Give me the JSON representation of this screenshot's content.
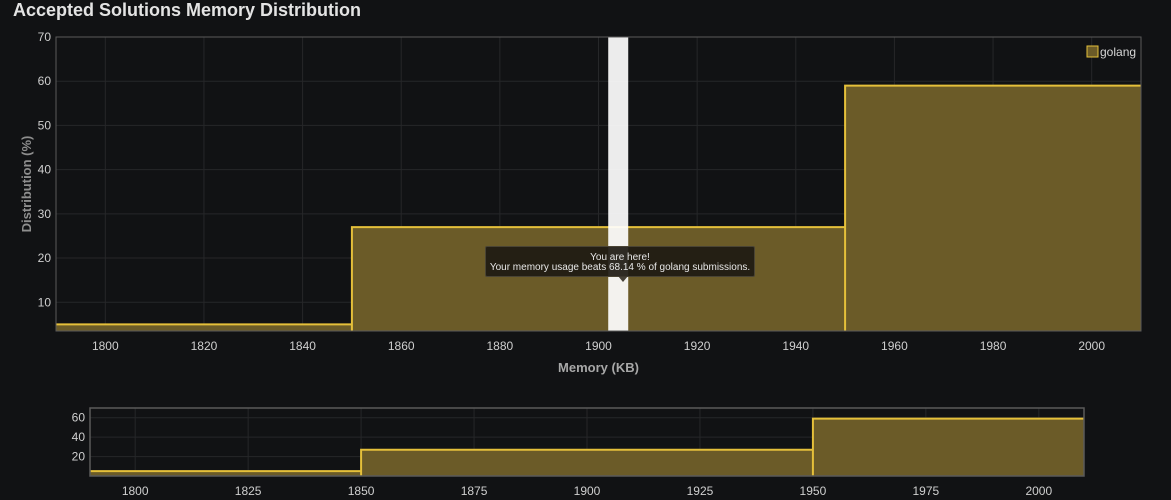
{
  "page": {
    "title": "Accepted Solutions Memory Distribution"
  },
  "chart_data": {
    "type": "area",
    "step": true,
    "xlabel": "Memory (KB)",
    "ylabel": "Distribution (%)",
    "xlim": [
      1790,
      2010
    ],
    "ylim": [
      3.5,
      70
    ],
    "xticks": [
      1800,
      1820,
      1840,
      1860,
      1880,
      1900,
      1920,
      1940,
      1960,
      1980,
      2000
    ],
    "yticks": [
      10,
      20,
      30,
      40,
      50,
      60,
      70
    ],
    "series": [
      {
        "name": "golang",
        "color": "#e5c03a",
        "fill": "#6b5b28",
        "bins": [
          {
            "start": 1790,
            "end": 1850,
            "value": 5
          },
          {
            "start": 1850,
            "end": 1950,
            "value": 27
          },
          {
            "start": 1950,
            "end": 2010,
            "value": 59
          }
        ]
      }
    ],
    "legend": {
      "position": "top-right"
    },
    "grid": true,
    "highlight": {
      "x": 1904
    },
    "tooltip": {
      "line1": "You are here!",
      "line2": "Your memory usage beats 68.14 % of golang submissions."
    },
    "navigator": {
      "xlim": [
        1790,
        2010
      ],
      "ylim": [
        0,
        70
      ],
      "xticks": [
        1800,
        1825,
        1850,
        1875,
        1900,
        1925,
        1950,
        1975,
        2000
      ],
      "yticks": [
        20,
        40,
        60
      ]
    }
  }
}
